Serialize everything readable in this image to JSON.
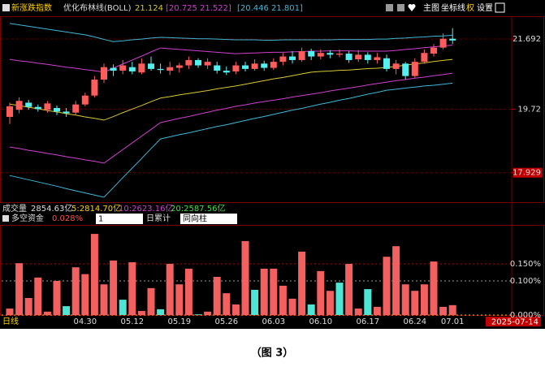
{
  "header": {
    "indicator": "新涨跌指数",
    "overlay_name": "优化布林线(BOLL)",
    "mid": "21.124",
    "inner_low": "[20.725",
    "inner_high": "21.522]",
    "outer_low": "[20.446",
    "outer_high": "21.801]",
    "buttons": [
      "主图",
      "坐标线",
      "权",
      "设置"
    ]
  },
  "volume": {
    "label": "成交量",
    "total": "2854.63亿",
    "ma5": "5:2814.70亿",
    "ma10": "10:2623.16亿",
    "ma20": "20:2587.56亿"
  },
  "sub_header": {
    "label": "多空资金",
    "value": "0.028%",
    "select_1": "1",
    "mode": "日累计",
    "select_2": "同向柱"
  },
  "footer": {
    "period": "日线",
    "date": "2025-07-14",
    "caption": "（图 3）"
  },
  "chart_data": [
    {
      "type": "candlestick",
      "up_color": "#ff5c5c",
      "down_color": "#54f0f0",
      "grid": true,
      "categories": [
        null,
        null,
        null,
        null,
        null,
        null,
        null,
        null,
        "04.30",
        null,
        null,
        null,
        null,
        "05.12",
        null,
        null,
        null,
        null,
        "05.19",
        null,
        null,
        null,
        null,
        "05.26",
        null,
        null,
        null,
        null,
        "06.03",
        null,
        null,
        null,
        null,
        "06.10",
        null,
        null,
        null,
        null,
        "06.17",
        null,
        null,
        null,
        null,
        "06.24",
        null,
        null,
        null,
        "07.01"
      ],
      "open": [
        19.5,
        19.7,
        19.9,
        19.78,
        19.7,
        19.75,
        19.65,
        19.62,
        19.85,
        20.1,
        20.55,
        20.88,
        20.8,
        20.9,
        20.75,
        21.0,
        20.85,
        20.8,
        20.88,
        20.95,
        21.1,
        20.95,
        20.95,
        20.8,
        20.78,
        20.95,
        20.85,
        21.0,
        20.88,
        21.05,
        21.2,
        21.1,
        21.35,
        21.2,
        21.3,
        21.25,
        21.28,
        21.12,
        21.25,
        21.1,
        21.15,
        20.85,
        21.0,
        20.65,
        21.05,
        21.28,
        21.45,
        21.7
      ],
      "high": [
        19.9,
        20.05,
        19.98,
        19.85,
        19.95,
        19.82,
        19.75,
        19.95,
        20.18,
        20.65,
        21.0,
        20.98,
        21.1,
        21.05,
        21.15,
        21.2,
        21.0,
        21.05,
        21.02,
        21.2,
        21.15,
        21.15,
        21.05,
        20.92,
        21.05,
        21.05,
        21.12,
        21.08,
        21.15,
        21.3,
        21.35,
        21.45,
        21.42,
        21.4,
        21.38,
        21.4,
        21.35,
        21.38,
        21.32,
        21.3,
        21.25,
        21.1,
        21.05,
        21.15,
        21.4,
        21.55,
        21.85,
        22.0
      ],
      "low": [
        19.3,
        19.6,
        19.7,
        19.65,
        19.62,
        19.55,
        19.5,
        19.55,
        19.8,
        20.05,
        20.45,
        20.65,
        20.7,
        20.7,
        20.7,
        20.8,
        20.72,
        20.68,
        20.75,
        20.85,
        20.88,
        20.85,
        20.72,
        20.68,
        20.7,
        20.78,
        20.8,
        20.8,
        20.82,
        20.95,
        21.0,
        21.05,
        21.1,
        21.12,
        21.15,
        21.18,
        21.02,
        21.05,
        21.0,
        21.0,
        20.78,
        20.7,
        20.55,
        20.6,
        21.0,
        21.2,
        21.4,
        21.55
      ],
      "close": [
        19.8,
        19.95,
        19.78,
        19.72,
        19.88,
        19.65,
        19.6,
        19.85,
        20.1,
        20.55,
        20.9,
        20.8,
        20.95,
        20.78,
        21.0,
        20.85,
        20.82,
        20.9,
        20.95,
        21.1,
        20.95,
        21.05,
        20.8,
        20.75,
        20.95,
        20.85,
        21.0,
        20.88,
        21.05,
        21.2,
        21.1,
        21.35,
        21.2,
        21.3,
        21.25,
        21.28,
        21.1,
        21.25,
        21.1,
        21.18,
        20.85,
        21.0,
        20.65,
        21.05,
        21.3,
        21.45,
        21.7,
        21.65
      ],
      "overlays": [
        {
          "color": "#3fb7d8",
          "values": [
            22.13,
            22.09,
            22.05,
            22.01,
            21.97,
            21.93,
            21.89,
            21.85,
            21.81,
            21.75,
            21.68,
            21.62,
            21.64,
            21.67,
            21.69,
            21.72,
            21.74,
            21.73,
            21.72,
            21.71,
            21.7,
            21.7,
            21.69,
            21.68,
            21.67,
            21.67,
            21.67,
            21.66,
            21.66,
            21.67,
            21.67,
            21.67,
            21.67,
            21.67,
            21.67,
            21.68,
            21.68,
            21.68,
            21.68,
            21.69,
            21.69,
            21.71,
            21.72,
            21.74,
            21.75,
            21.77,
            21.78,
            21.8
          ]
        },
        {
          "color": "#d040d0",
          "values": [
            21.12,
            21.08,
            21.05,
            21.01,
            20.98,
            20.94,
            20.9,
            20.87,
            20.83,
            20.8,
            20.76,
            20.87,
            20.99,
            21.1,
            21.21,
            21.33,
            21.44,
            21.42,
            21.4,
            21.38,
            21.36,
            21.34,
            21.32,
            21.3,
            21.28,
            21.29,
            21.3,
            21.31,
            21.32,
            21.32,
            21.33,
            21.34,
            21.35,
            21.35,
            21.36,
            21.36,
            21.36,
            21.35,
            21.35,
            21.35,
            21.35,
            21.37,
            21.4,
            21.42,
            21.45,
            21.47,
            21.5,
            21.52
          ]
        },
        {
          "color": "#d8c830",
          "values": [
            19.86,
            19.82,
            19.77,
            19.73,
            19.68,
            19.64,
            19.59,
            19.55,
            19.5,
            19.46,
            19.41,
            19.51,
            19.62,
            19.72,
            19.82,
            19.93,
            20.03,
            20.07,
            20.12,
            20.16,
            20.2,
            20.24,
            20.29,
            20.33,
            20.37,
            20.42,
            20.47,
            20.52,
            20.57,
            20.61,
            20.66,
            20.71,
            20.76,
            20.78,
            20.79,
            20.81,
            20.82,
            20.84,
            20.86,
            20.87,
            20.89,
            20.92,
            20.96,
            20.99,
            21.02,
            21.06,
            21.09,
            21.12
          ]
        },
        {
          "color": "#d040d0",
          "values": [
            18.65,
            18.61,
            18.56,
            18.52,
            18.47,
            18.43,
            18.38,
            18.34,
            18.29,
            18.25,
            18.2,
            18.39,
            18.58,
            18.77,
            18.96,
            19.15,
            19.34,
            19.4,
            19.46,
            19.51,
            19.57,
            19.63,
            19.69,
            19.74,
            19.8,
            19.84,
            19.89,
            19.93,
            19.97,
            20.01,
            20.06,
            20.1,
            20.14,
            20.18,
            20.23,
            20.27,
            20.31,
            20.35,
            20.4,
            20.44,
            20.48,
            20.52,
            20.55,
            20.59,
            20.62,
            20.66,
            20.69,
            20.73
          ]
        },
        {
          "color": "#3fb7d8",
          "values": [
            17.85,
            17.79,
            17.73,
            17.67,
            17.61,
            17.55,
            17.48,
            17.42,
            17.36,
            17.3,
            17.24,
            17.51,
            17.79,
            18.06,
            18.33,
            18.61,
            18.88,
            18.94,
            19.0,
            19.05,
            19.11,
            19.17,
            19.23,
            19.28,
            19.34,
            19.4,
            19.46,
            19.51,
            19.57,
            19.63,
            19.69,
            19.74,
            19.8,
            19.86,
            19.91,
            19.97,
            20.02,
            20.08,
            20.14,
            20.19,
            20.25,
            20.28,
            20.31,
            20.34,
            20.37,
            20.39,
            20.42,
            20.45
          ]
        }
      ],
      "ylim": [
        17.1,
        22.31
      ],
      "yticks": [
        21.692,
        19.72,
        17.929
      ]
    },
    {
      "type": "bar",
      "values": [
        0.019,
        0.152,
        0.05,
        0.11,
        0.01,
        0.1,
        0.026,
        0.14,
        0.12,
        0.238,
        0.09,
        0.16,
        0.045,
        0.155,
        0.012,
        0.079,
        0.017,
        0.15,
        0.09,
        0.136,
        0.002,
        0.01,
        0.112,
        0.064,
        0.031,
        0.217,
        0.074,
        0.136,
        0.136,
        0.086,
        0.048,
        0.186,
        0.031,
        0.129,
        0.071,
        0.095,
        0.15,
        0.019,
        0.076,
        0.024,
        0.171,
        0.202,
        0.09,
        0.071,
        0.09,
        0.157,
        0.024,
        0.029
      ],
      "colors": [
        "#f26060",
        "#f26060",
        "#f26060",
        "#f26060",
        "#f26060",
        "#f26060",
        "#4ee5d5",
        "#f26060",
        "#f26060",
        "#f26060",
        "#f26060",
        "#f26060",
        "#4ee5d5",
        "#f26060",
        "#f26060",
        "#f26060",
        "#4ee5d5",
        "#f26060",
        "#f26060",
        "#f26060",
        "#4ee5d5",
        "#f26060",
        "#f26060",
        "#f26060",
        "#f26060",
        "#f26060",
        "#4ee5d5",
        "#f26060",
        "#f26060",
        "#f26060",
        "#f26060",
        "#f26060",
        "#4ee5d5",
        "#f26060",
        "#f26060",
        "#4ee5d5",
        "#f26060",
        "#f26060",
        "#4ee5d5",
        "#f26060",
        "#f26060",
        "#f26060",
        "#f26060",
        "#f26060",
        "#f26060",
        "#f26060",
        "#f26060",
        "#f26060"
      ],
      "ylim": [
        0,
        0.262
      ],
      "yticks": [
        {
          "value": 0.15,
          "label": "0.150%"
        },
        {
          "value": 0.1,
          "label": "0.100%"
        },
        {
          "value": 0,
          "label": "0.000%"
        }
      ],
      "grid_colors": [
        "#d8d800",
        "#9a9a9a",
        "#c00000"
      ]
    }
  ]
}
